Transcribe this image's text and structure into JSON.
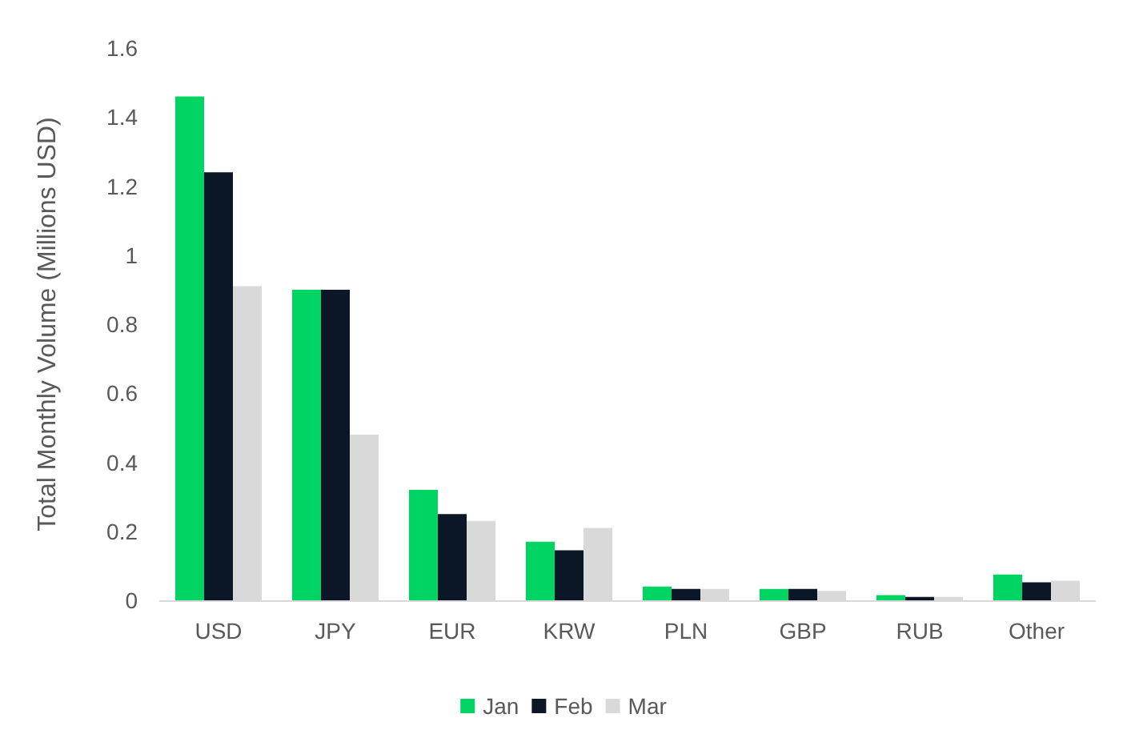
{
  "chart_data": {
    "type": "bar",
    "ylabel": "Total Monthly Volume (Millions USD)",
    "categories": [
      "USD",
      "JPY",
      "EUR",
      "KRW",
      "PLN",
      "GBP",
      "RUB",
      "Other"
    ],
    "series": [
      {
        "name": "Jan",
        "color": "#00d563",
        "values": [
          1.46,
          0.9,
          0.32,
          0.17,
          0.04,
          0.033,
          0.015,
          0.075
        ]
      },
      {
        "name": "Feb",
        "color": "#0b1726",
        "values": [
          1.24,
          0.9,
          0.25,
          0.145,
          0.033,
          0.033,
          0.01,
          0.052
        ]
      },
      {
        "name": "Mar",
        "color": "#d9d9d9",
        "values": [
          0.91,
          0.48,
          0.23,
          0.21,
          0.033,
          0.027,
          0.01,
          0.057
        ]
      }
    ],
    "ylim": [
      0,
      1.6
    ],
    "yticks": [
      0,
      0.2,
      0.4,
      0.6,
      0.8,
      1,
      1.2,
      1.4,
      1.6
    ],
    "grid": false,
    "legend": "bottom"
  }
}
